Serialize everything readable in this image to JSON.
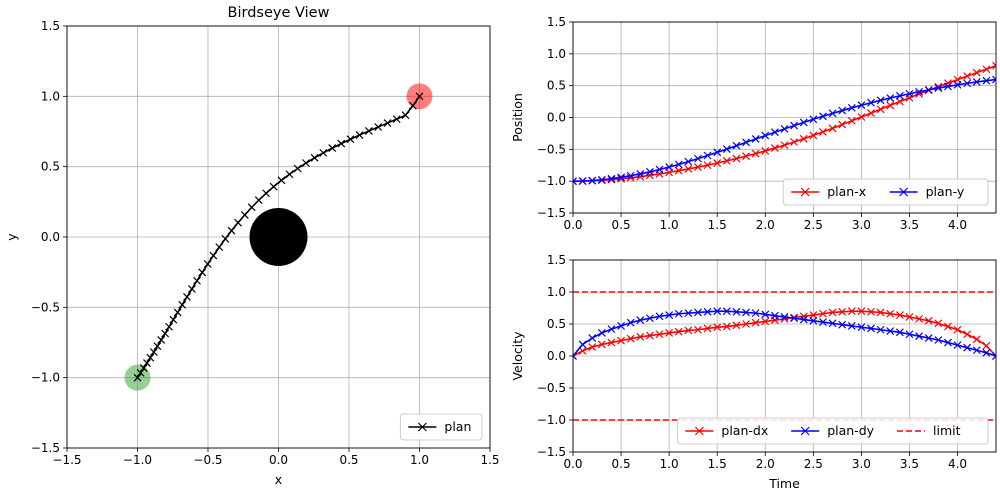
{
  "chart_data": [
    {
      "type": "line",
      "title": "Birdseye View",
      "xlabel": "x",
      "ylabel": "y",
      "xlim": [
        -1.5,
        1.5
      ],
      "ylim": [
        -1.5,
        1.5
      ],
      "xticks": [
        "−1.5",
        "−1.0",
        "−0.5",
        "0.0",
        "0.5",
        "1.0",
        "1.5"
      ],
      "yticks": [
        "−1.5",
        "−1.0",
        "−0.5",
        "0.0",
        "0.5",
        "1.0",
        "1.5"
      ],
      "grid": true,
      "legend": {
        "position": "lower-right",
        "entries": [
          "plan"
        ]
      },
      "series": [
        {
          "name": "plan",
          "color": "#000000",
          "marker": "x",
          "x": [
            -1.0,
            -0.978,
            -0.956,
            -0.933,
            -0.909,
            -0.884,
            -0.859,
            -0.832,
            -0.804,
            -0.776,
            -0.746,
            -0.715,
            -0.683,
            -0.649,
            -0.614,
            -0.578,
            -0.541,
            -0.502,
            -0.462,
            -0.42,
            -0.377,
            -0.333,
            -0.287,
            -0.239,
            -0.19,
            -0.14,
            -0.088,
            -0.034,
            0.021,
            0.078,
            0.136,
            0.195,
            0.256,
            0.318,
            0.381,
            0.445,
            0.51,
            0.575,
            0.641,
            0.707,
            0.773,
            0.838,
            0.901,
            0.953,
            1.0
          ],
          "y": [
            -1.0,
            -0.966,
            -0.932,
            -0.896,
            -0.858,
            -0.818,
            -0.776,
            -0.732,
            -0.686,
            -0.638,
            -0.588,
            -0.536,
            -0.482,
            -0.426,
            -0.369,
            -0.311,
            -0.252,
            -0.192,
            -0.132,
            -0.072,
            -0.013,
            0.045,
            0.102,
            0.157,
            0.211,
            0.262,
            0.311,
            0.358,
            0.403,
            0.446,
            0.487,
            0.526,
            0.563,
            0.598,
            0.632,
            0.664,
            0.695,
            0.725,
            0.754,
            0.782,
            0.81,
            0.838,
            0.866,
            0.934,
            1.0
          ]
        }
      ],
      "markers": [
        {
          "kind": "start",
          "x": -1.0,
          "y": -1.0,
          "color": "#2ca02c"
        },
        {
          "kind": "goal",
          "x": 1.0,
          "y": 1.0,
          "color": "#ff0000"
        },
        {
          "kind": "obstacle",
          "x": 0.0,
          "y": 0.0,
          "color": "#000000"
        }
      ]
    },
    {
      "type": "line",
      "title": "",
      "xlabel": "",
      "ylabel": "Position",
      "xlim": [
        0.0,
        4.4
      ],
      "ylim": [
        -1.5,
        1.5
      ],
      "xticks": [
        "0.0",
        "0.5",
        "1.0",
        "1.5",
        "2.0",
        "2.5",
        "3.0",
        "3.5",
        "4.0"
      ],
      "yticks": [
        "−1.5",
        "−1.0",
        "−0.5",
        "0.0",
        "0.5",
        "1.0",
        "1.5"
      ],
      "grid": true,
      "legend": {
        "position": "lower-right",
        "entries": [
          "plan-x",
          "plan-y"
        ]
      },
      "x": [
        0.0,
        0.1,
        0.2,
        0.3,
        0.4,
        0.5,
        0.6,
        0.7,
        0.8,
        0.9,
        1.0,
        1.1,
        1.2,
        1.3,
        1.4,
        1.5,
        1.6,
        1.7,
        1.8,
        1.9,
        2.0,
        2.1,
        2.2,
        2.3,
        2.4,
        2.5,
        2.6,
        2.7,
        2.8,
        2.9,
        3.0,
        3.1,
        3.2,
        3.3,
        3.4,
        3.5,
        3.6,
        3.7,
        3.8,
        3.9,
        4.0,
        4.1,
        4.2,
        4.3,
        4.4
      ],
      "series": [
        {
          "name": "plan-x",
          "color": "#ff0000",
          "marker": "x",
          "values": [
            -1.0,
            -0.999,
            -0.994,
            -0.987,
            -0.976,
            -0.963,
            -0.947,
            -0.929,
            -0.908,
            -0.886,
            -0.862,
            -0.836,
            -0.808,
            -0.779,
            -0.748,
            -0.715,
            -0.681,
            -0.645,
            -0.607,
            -0.567,
            -0.525,
            -0.48,
            -0.434,
            -0.385,
            -0.334,
            -0.281,
            -0.226,
            -0.17,
            -0.111,
            -0.052,
            0.008,
            0.069,
            0.129,
            0.19,
            0.25,
            0.31,
            0.369,
            0.427,
            0.484,
            0.54,
            0.595,
            0.65,
            0.704,
            0.758,
            0.813
          ]
        },
        {
          "name": "plan-y",
          "color": "#0000ff",
          "marker": "x",
          "values": [
            -1.0,
            -0.998,
            -0.99,
            -0.978,
            -0.961,
            -0.94,
            -0.915,
            -0.886,
            -0.853,
            -0.817,
            -0.778,
            -0.737,
            -0.693,
            -0.646,
            -0.597,
            -0.547,
            -0.496,
            -0.443,
            -0.39,
            -0.337,
            -0.284,
            -0.231,
            -0.179,
            -0.127,
            -0.077,
            -0.028,
            0.019,
            0.065,
            0.109,
            0.152,
            0.193,
            0.232,
            0.27,
            0.306,
            0.34,
            0.373,
            0.404,
            0.434,
            0.462,
            0.488,
            0.513,
            0.536,
            0.558,
            0.578,
            0.596
          ]
        }
      ]
    },
    {
      "type": "line",
      "title": "",
      "xlabel": "Time",
      "ylabel": "Velocity",
      "xlim": [
        0.0,
        4.4
      ],
      "ylim": [
        -1.5,
        1.5
      ],
      "xticks": [
        "0.0",
        "0.5",
        "1.0",
        "1.5",
        "2.0",
        "2.5",
        "3.0",
        "3.5",
        "4.0"
      ],
      "yticks": [
        "−1.5",
        "−1.0",
        "−0.5",
        "0.0",
        "0.5",
        "1.0",
        "1.5"
      ],
      "grid": true,
      "legend": {
        "position": "lower-right",
        "entries": [
          "plan-dx",
          "plan-dy",
          "limit"
        ]
      },
      "x": [
        0.0,
        0.1,
        0.2,
        0.3,
        0.4,
        0.5,
        0.6,
        0.7,
        0.8,
        0.9,
        1.0,
        1.1,
        1.2,
        1.3,
        1.4,
        1.5,
        1.6,
        1.7,
        1.8,
        1.9,
        2.0,
        2.1,
        2.2,
        2.3,
        2.4,
        2.5,
        2.6,
        2.7,
        2.8,
        2.9,
        3.0,
        3.1,
        3.2,
        3.3,
        3.4,
        3.5,
        3.6,
        3.7,
        3.8,
        3.9,
        4.0,
        4.1,
        4.2,
        4.3,
        4.4
      ],
      "series": [
        {
          "name": "plan-dx",
          "color": "#ff0000",
          "marker": "x",
          "values": [
            0.0,
            0.08,
            0.14,
            0.18,
            0.21,
            0.24,
            0.27,
            0.3,
            0.32,
            0.34,
            0.36,
            0.38,
            0.4,
            0.41,
            0.43,
            0.45,
            0.46,
            0.48,
            0.5,
            0.52,
            0.54,
            0.56,
            0.58,
            0.6,
            0.62,
            0.64,
            0.66,
            0.68,
            0.69,
            0.7,
            0.7,
            0.69,
            0.68,
            0.66,
            0.64,
            0.61,
            0.58,
            0.55,
            0.51,
            0.46,
            0.41,
            0.34,
            0.26,
            0.16,
            0.0
          ]
        },
        {
          "name": "plan-dy",
          "color": "#0000ff",
          "marker": "x",
          "values": [
            0.0,
            0.18,
            0.28,
            0.36,
            0.42,
            0.47,
            0.52,
            0.56,
            0.59,
            0.62,
            0.64,
            0.66,
            0.67,
            0.68,
            0.69,
            0.7,
            0.7,
            0.69,
            0.68,
            0.67,
            0.65,
            0.63,
            0.61,
            0.59,
            0.57,
            0.55,
            0.53,
            0.51,
            0.49,
            0.47,
            0.45,
            0.43,
            0.41,
            0.39,
            0.37,
            0.34,
            0.31,
            0.28,
            0.25,
            0.21,
            0.17,
            0.13,
            0.09,
            0.05,
            0.0
          ]
        },
        {
          "name": "limit",
          "color": "#ff0000",
          "style": "dashed",
          "hlines": [
            1.0,
            -1.0
          ]
        }
      ]
    }
  ]
}
